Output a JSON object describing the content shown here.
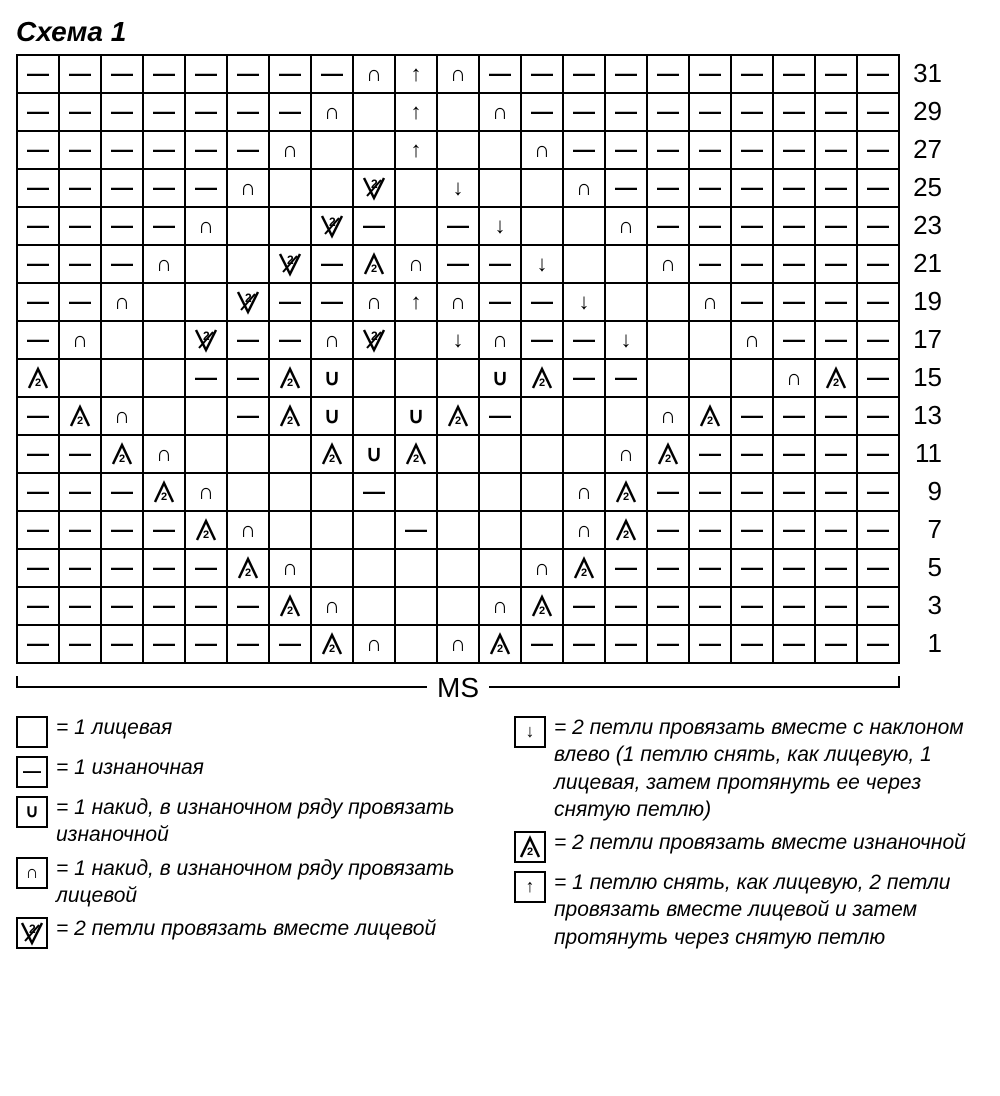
{
  "title": "Схема 1",
  "ms_label": "MS",
  "row_numbers": [
    31,
    29,
    27,
    25,
    23,
    21,
    19,
    17,
    15,
    13,
    11,
    9,
    7,
    5,
    3,
    1
  ],
  "colors": {
    "fg": "#000000",
    "bg": "#ffffff"
  },
  "symbols": {
    "K": {
      "glyph": "",
      "kind": "blank",
      "desc": "knit / blank cell"
    },
    "P": {
      "glyph": "—",
      "kind": "text",
      "desc": "purl dash"
    },
    "YOU": {
      "glyph": "∪",
      "kind": "text",
      "desc": "yarn over U"
    },
    "YON": {
      "glyph": "∩",
      "kind": "text",
      "desc": "yarn over N"
    },
    "V2": {
      "glyph": "svg-v2",
      "kind": "svg",
      "desc": "k2tog with 2 inside"
    },
    "DA": {
      "glyph": "↓",
      "kind": "text",
      "desc": "ssk arrow down"
    },
    "A2": {
      "glyph": "svg-a2",
      "kind": "svg",
      "desc": "p2tog triangle with 2"
    },
    "UA": {
      "glyph": "↑",
      "kind": "text",
      "desc": "slip-k2tog-psso up arrow"
    }
  },
  "chart": {
    "cols": 21,
    "rows": 16,
    "cells": [
      [
        "P",
        "P",
        "P",
        "P",
        "P",
        "P",
        "P",
        "P",
        "YON",
        "UA",
        "YON",
        "P",
        "P",
        "P",
        "P",
        "P",
        "P",
        "P",
        "P",
        "P",
        "P"
      ],
      [
        "P",
        "P",
        "P",
        "P",
        "P",
        "P",
        "P",
        "YON",
        "K",
        "UA",
        "K",
        "YON",
        "P",
        "P",
        "P",
        "P",
        "P",
        "P",
        "P",
        "P",
        "P"
      ],
      [
        "P",
        "P",
        "P",
        "P",
        "P",
        "P",
        "YON",
        "K",
        "K",
        "UA",
        "K",
        "K",
        "YON",
        "P",
        "P",
        "P",
        "P",
        "P",
        "P",
        "P",
        "P"
      ],
      [
        "P",
        "P",
        "P",
        "P",
        "P",
        "YON",
        "K",
        "K",
        "V2",
        "K",
        "DA",
        "K",
        "K",
        "YON",
        "P",
        "P",
        "P",
        "P",
        "P",
        "P",
        "P"
      ],
      [
        "P",
        "P",
        "P",
        "P",
        "YON",
        "K",
        "K",
        "V2",
        "P",
        "K",
        "P",
        "DA",
        "K",
        "K",
        "YON",
        "P",
        "P",
        "P",
        "P",
        "P",
        "P"
      ],
      [
        "P",
        "P",
        "P",
        "YON",
        "K",
        "K",
        "V2",
        "P",
        "A2",
        "YON",
        "P",
        "P",
        "DA",
        "K",
        "K",
        "YON",
        "P",
        "P",
        "P",
        "P",
        "P"
      ],
      [
        "P",
        "P",
        "YON",
        "K",
        "K",
        "V2",
        "P",
        "P",
        "YON",
        "UA",
        "YON",
        "P",
        "P",
        "DA",
        "K",
        "K",
        "YON",
        "P",
        "P",
        "P",
        "P"
      ],
      [
        "P",
        "YON",
        "K",
        "K",
        "V2",
        "P",
        "P",
        "YON",
        "V2",
        "K",
        "DA",
        "YON",
        "P",
        "P",
        "DA",
        "K",
        "K",
        "YON",
        "P",
        "P",
        "P"
      ],
      [
        "A2",
        "K",
        "K",
        "K",
        "P",
        "P",
        "A2",
        "YOU",
        "K",
        "K",
        "K",
        "YOU",
        "A2",
        "P",
        "P",
        "K",
        "K",
        "K",
        "YON",
        "A2",
        "P"
      ],
      [
        "P",
        "A2",
        "YON",
        "K",
        "K",
        "P",
        "A2",
        "YOU",
        "K",
        "YOU",
        "A2",
        "P",
        "K",
        "K",
        "K",
        "YON",
        "A2",
        "P",
        "P",
        "P",
        "P"
      ],
      [
        "P",
        "P",
        "A2",
        "YON",
        "K",
        "K",
        "K",
        "A2",
        "YOU",
        "A2",
        "K",
        "K",
        "K",
        "K",
        "YON",
        "A2",
        "P",
        "P",
        "P",
        "P",
        "P"
      ],
      [
        "P",
        "P",
        "P",
        "A2",
        "YON",
        "K",
        "K",
        "K",
        "P",
        "K",
        "K",
        "K",
        "K",
        "YON",
        "A2",
        "P",
        "P",
        "P",
        "P",
        "P",
        "P"
      ],
      [
        "P",
        "P",
        "P",
        "P",
        "A2",
        "YON",
        "K",
        "K",
        "K",
        "P",
        "K",
        "K",
        "K",
        "YON",
        "A2",
        "P",
        "P",
        "P",
        "P",
        "P",
        "P"
      ],
      [
        "P",
        "P",
        "P",
        "P",
        "P",
        "A2",
        "YON",
        "K",
        "K",
        "K",
        "K",
        "K",
        "YON",
        "A2",
        "P",
        "P",
        "P",
        "P",
        "P",
        "P",
        "P"
      ],
      [
        "P",
        "P",
        "P",
        "P",
        "P",
        "P",
        "A2",
        "YON",
        "K",
        "K",
        "K",
        "YON",
        "A2",
        "P",
        "P",
        "P",
        "P",
        "P",
        "P",
        "P",
        "P"
      ],
      [
        "P",
        "P",
        "P",
        "P",
        "P",
        "P",
        "P",
        "A2",
        "YON",
        "K",
        "YON",
        "A2",
        "P",
        "P",
        "P",
        "P",
        "P",
        "P",
        "P",
        "P",
        "P"
      ]
    ]
  },
  "legend_left": [
    {
      "sym": "K",
      "text": "= 1 лицевая"
    },
    {
      "sym": "P",
      "text": "= 1 изнаночная"
    },
    {
      "sym": "YOU",
      "text": "= 1 накид, в изнаночном ряду провязать изнаночной"
    },
    {
      "sym": "YON",
      "text": "= 1 накид, в изнаночном ряду провязать лицевой"
    },
    {
      "sym": "V2",
      "text": "= 2 петли провязать вместе лицевой"
    }
  ],
  "legend_right": [
    {
      "sym": "DA",
      "text": "= 2 петли провязать вместе с наклоном влево (1 петлю снять, как лицевую, 1 лицевая, затем протянуть ее через снятую петлю)"
    },
    {
      "sym": "A2",
      "text": "= 2 петли провязать вместе изнаночной"
    },
    {
      "sym": "UA",
      "text": "= 1 петлю снять, как лицевую, 2 петли провязать вместе лицевой и затем протянуть через снятую петлю"
    }
  ]
}
